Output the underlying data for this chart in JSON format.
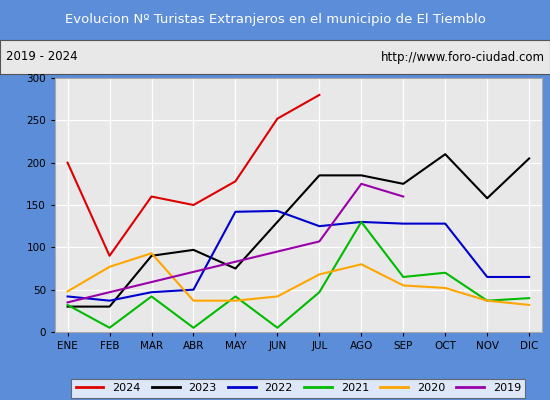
{
  "title": "Evolucion Nº Turistas Extranjeros en el municipio de El Tiemblo",
  "subtitle_left": "2019 - 2024",
  "subtitle_right": "http://www.foro-ciudad.com",
  "title_bg_color": "#5b8dd9",
  "title_text_color": "#ffffff",
  "subtitle_bg_color": "#e8e8e8",
  "subtitle_text_color": "#000000",
  "plot_bg_color": "#e8e8e8",
  "months": [
    "ENE",
    "FEB",
    "MAR",
    "ABR",
    "MAY",
    "JUN",
    "JUL",
    "AGO",
    "SEP",
    "OCT",
    "NOV",
    "DIC"
  ],
  "series": {
    "2024": {
      "color": "#dd0000",
      "values": [
        200,
        90,
        160,
        150,
        178,
        252,
        280,
        null,
        null,
        null,
        null,
        null
      ]
    },
    "2023": {
      "color": "#000000",
      "values": [
        30,
        30,
        90,
        97,
        75,
        130,
        185,
        185,
        175,
        210,
        158,
        205
      ]
    },
    "2022": {
      "color": "#0000cc",
      "values": [
        42,
        37,
        47,
        50,
        142,
        143,
        125,
        130,
        128,
        128,
        65,
        65
      ]
    },
    "2021": {
      "color": "#00bb00",
      "values": [
        32,
        5,
        42,
        5,
        42,
        5,
        47,
        130,
        65,
        70,
        37,
        40
      ]
    },
    "2020": {
      "color": "#ffa500",
      "values": [
        48,
        77,
        93,
        37,
        37,
        42,
        68,
        80,
        55,
        52,
        37,
        32
      ]
    },
    "2019": {
      "color": "#9900aa",
      "values": [
        35,
        null,
        null,
        null,
        null,
        null,
        107,
        175,
        160,
        null,
        null,
        null
      ]
    }
  },
  "ylim": [
    0,
    300
  ],
  "yticks": [
    0,
    50,
    100,
    150,
    200,
    250,
    300
  ],
  "legend_order": [
    "2024",
    "2023",
    "2022",
    "2021",
    "2020",
    "2019"
  ]
}
